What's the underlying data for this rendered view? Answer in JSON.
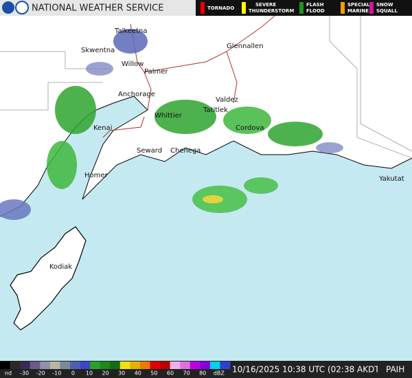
{
  "header": {
    "title": "NATIONAL WEATHER SERVICE"
  },
  "warnings": [
    {
      "lines": [
        "TORNADO"
      ]
    },
    {
      "lines": [
        "SEVERE",
        "THUNDERSTORM"
      ]
    },
    {
      "lines": [
        "FLASH",
        "FLOOD"
      ]
    },
    {
      "lines": [
        "SPECIAL",
        "MARINE"
      ]
    },
    {
      "lines": [
        "SNOW",
        "SQUALL"
      ]
    }
  ],
  "places": [
    "Talkeetna",
    "Skwentna",
    "Glennallen",
    "Willow",
    "Palmer",
    "Anchorage",
    "Valdez",
    "Tatitlek",
    "Whittier",
    "Kenai",
    "Cordova",
    "Seward",
    "Chenega",
    "Homer",
    "Yakutat",
    "Kodiak"
  ],
  "scale": {
    "labels": [
      "nd",
      "-30",
      "-20",
      "-10",
      "0",
      "10",
      "20",
      "30",
      "40",
      "50",
      "60",
      "70",
      "80",
      "dBZ"
    ]
  },
  "footer": {
    "timestamp": "10/16/2025 10:38 UTC (02:38 AKDT)",
    "station": "PAIH"
  }
}
